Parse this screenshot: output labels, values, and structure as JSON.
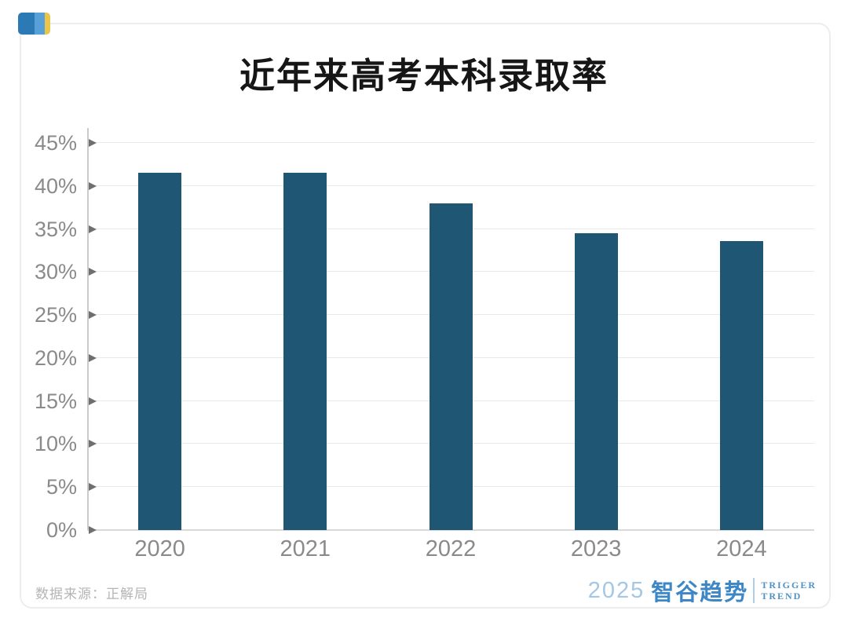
{
  "page": {
    "title": "近年来高考本科录取率",
    "source": "数据来源：正解局"
  },
  "logo": {
    "year": "2025",
    "brand": "智谷趋势",
    "tagline_line1": "TRIGGER",
    "tagline_line2": "TREND"
  },
  "brand_icon_colors": {
    "dark_blue": "#2b7ab5",
    "light_blue": "#58a0d8",
    "yellow": "#e9c64a"
  },
  "chart_data": {
    "type": "bar",
    "title": "近年来高考本科录取率",
    "categories": [
      "2020",
      "2021",
      "2022",
      "2023",
      "2024"
    ],
    "values": [
      41.5,
      41.5,
      38.0,
      34.5,
      33.6
    ],
    "unit": "%",
    "xlabel": "",
    "ylabel": "",
    "ylim": [
      0,
      45
    ],
    "ytick_step": 5,
    "y_tick_labels": [
      "0%",
      "5%",
      "10%",
      "15%",
      "20%",
      "25%",
      "30%",
      "35%",
      "40%",
      "45%"
    ],
    "grid": "horizontal",
    "legend": "none",
    "bar_color": "#1f5673",
    "axis_color": "#cbcbcb",
    "tick_arrow_color": "#6f6f6f",
    "label_color": "#8a8a8a"
  }
}
